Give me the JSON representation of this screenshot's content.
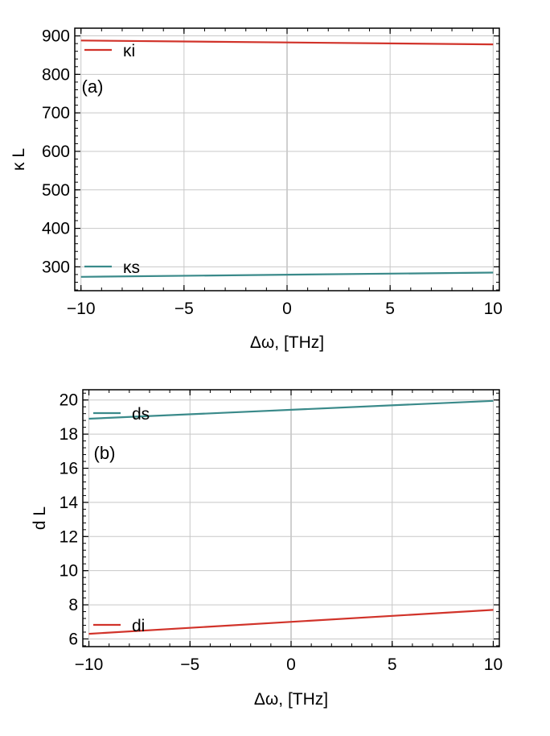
{
  "chart_data": [
    {
      "type": "line",
      "panel_label": "(a)",
      "xlabel": "Δω, [THz]",
      "ylabel": "κ L",
      "xlim": [
        -10.3,
        10.3
      ],
      "ylim": [
        238,
        920
      ],
      "xticks": [
        -10,
        -5,
        0,
        5,
        10
      ],
      "xtick_labels": [
        "−10",
        "−5",
        "0",
        "5",
        "10"
      ],
      "yticks": [
        300,
        400,
        500,
        600,
        700,
        800,
        900
      ],
      "ytick_labels": [
        "300",
        "400",
        "500",
        "600",
        "700",
        "800",
        "900"
      ],
      "grid": true,
      "series": [
        {
          "name": "κi",
          "color": "#d1332a",
          "x": [
            -10,
            10
          ],
          "y": [
            888,
            878
          ]
        },
        {
          "name": "κs",
          "color": "#3a8a8a",
          "x": [
            -10,
            10
          ],
          "y": [
            274,
            285
          ]
        }
      ]
    },
    {
      "type": "line",
      "panel_label": "(b)",
      "xlabel": "Δω, [THz]",
      "ylabel": "d L",
      "xlim": [
        -10.3,
        10.3
      ],
      "ylim": [
        5.55,
        20.6
      ],
      "xticks": [
        -10,
        -5,
        0,
        5,
        10
      ],
      "xtick_labels": [
        "−10",
        "−5",
        "0",
        "5",
        "10"
      ],
      "yticks": [
        6,
        8,
        10,
        12,
        14,
        16,
        18,
        20
      ],
      "ytick_labels": [
        "6",
        "8",
        "10",
        "12",
        "14",
        "16",
        "18",
        "20"
      ],
      "grid": true,
      "series": [
        {
          "name": "ds",
          "color": "#3a8a8a",
          "x": [
            -10,
            10
          ],
          "y": [
            18.9,
            19.95
          ]
        },
        {
          "name": "di",
          "color": "#d1332a",
          "x": [
            -10,
            10
          ],
          "y": [
            6.3,
            7.7
          ]
        }
      ]
    }
  ]
}
